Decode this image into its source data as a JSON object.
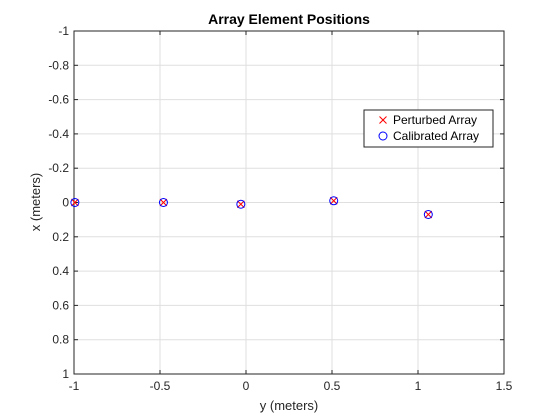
{
  "chart_data": {
    "type": "scatter",
    "title": "Array Element Positions",
    "xlabel": "y (meters)",
    "ylabel": "x (meters)",
    "xlim": [
      -1,
      1.5
    ],
    "ylim": [
      -1,
      1
    ],
    "y_axis_reversed": true,
    "grid": true,
    "legend_position": "top-right",
    "x_ticks": [
      -1,
      -0.5,
      0,
      0.5,
      1,
      1.5
    ],
    "x_tick_labels": [
      "-1",
      "-0.5",
      "0",
      "0.5",
      "1",
      "1.5"
    ],
    "y_ticks": [
      -1,
      -0.8,
      -0.6,
      -0.4,
      -0.2,
      0,
      0.2,
      0.4,
      0.6,
      0.8,
      1
    ],
    "y_tick_labels": [
      "-1",
      "-0.8",
      "-0.6",
      "-0.4",
      "-0.2",
      "0",
      "0.2",
      "0.4",
      "0.6",
      "0.8",
      "1"
    ],
    "series": [
      {
        "name": "Perturbed Array",
        "marker": "x",
        "color": "#ff0000",
        "points": [
          {
            "x": -0.995,
            "y": 0.0
          },
          {
            "x": -0.48,
            "y": 0.0
          },
          {
            "x": -0.03,
            "y": 0.01
          },
          {
            "x": 0.51,
            "y": -0.01
          },
          {
            "x": 1.06,
            "y": 0.07
          }
        ]
      },
      {
        "name": "Calibrated Array",
        "marker": "o",
        "color": "#0000ff",
        "points": [
          {
            "x": -0.995,
            "y": 0.0
          },
          {
            "x": -0.48,
            "y": 0.0
          },
          {
            "x": -0.03,
            "y": 0.01
          },
          {
            "x": 0.51,
            "y": -0.01
          },
          {
            "x": 1.06,
            "y": 0.07
          }
        ]
      }
    ]
  }
}
